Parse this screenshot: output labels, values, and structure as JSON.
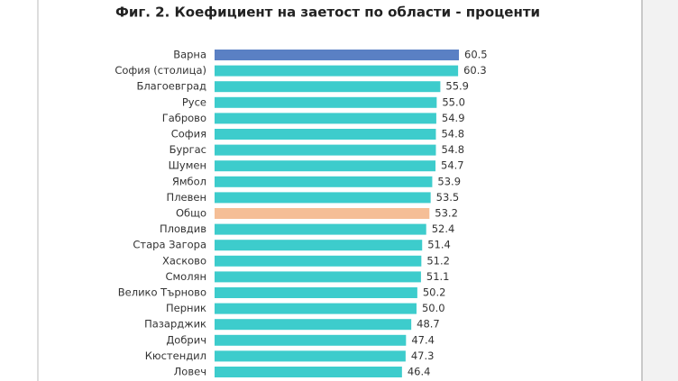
{
  "chart_data": {
    "type": "bar",
    "orientation": "horizontal",
    "title": "Фиг. 2. Коефициент на заетост по области - проценти",
    "categories": [
      "Варна",
      "София (столица)",
      "Благоевград",
      "Русе",
      "Габрово",
      "София",
      "Бургас",
      "Шумен",
      "Ямбол",
      "Плевен",
      "Общо",
      "Пловдив",
      "Стара Загора",
      "Хасково",
      "Смолян",
      "Велико Търново",
      "Перник",
      "Пазарджик",
      "Добрич",
      "Кюстендил",
      "Ловеч"
    ],
    "values": [
      60.5,
      60.3,
      55.9,
      55.0,
      54.9,
      54.8,
      54.8,
      54.7,
      53.9,
      53.5,
      53.2,
      52.4,
      51.4,
      51.2,
      51.1,
      50.2,
      50.0,
      48.7,
      47.4,
      47.3,
      46.4
    ],
    "value_labels": [
      "60.5",
      "60.3",
      "55.9",
      "55.0",
      "54.9",
      "54.8",
      "54.8",
      "54.7",
      "53.9",
      "53.5",
      "53.2",
      "52.4",
      "51.4",
      "51.2",
      "51.1",
      "50.2",
      "50.0",
      "48.7",
      "47.4",
      "47.3",
      "46.4"
    ],
    "colors": [
      "#5a80c4",
      "#3dcccc",
      "#3dcccc",
      "#3dcccc",
      "#3dcccc",
      "#3dcccc",
      "#3dcccc",
      "#3dcccc",
      "#3dcccc",
      "#3dcccc",
      "#f5be96",
      "#3dcccc",
      "#3dcccc",
      "#3dcccc",
      "#3dcccc",
      "#3dcccc",
      "#3dcccc",
      "#3dcccc",
      "#3dcccc",
      "#3dcccc",
      "#3dcccc"
    ]
  }
}
